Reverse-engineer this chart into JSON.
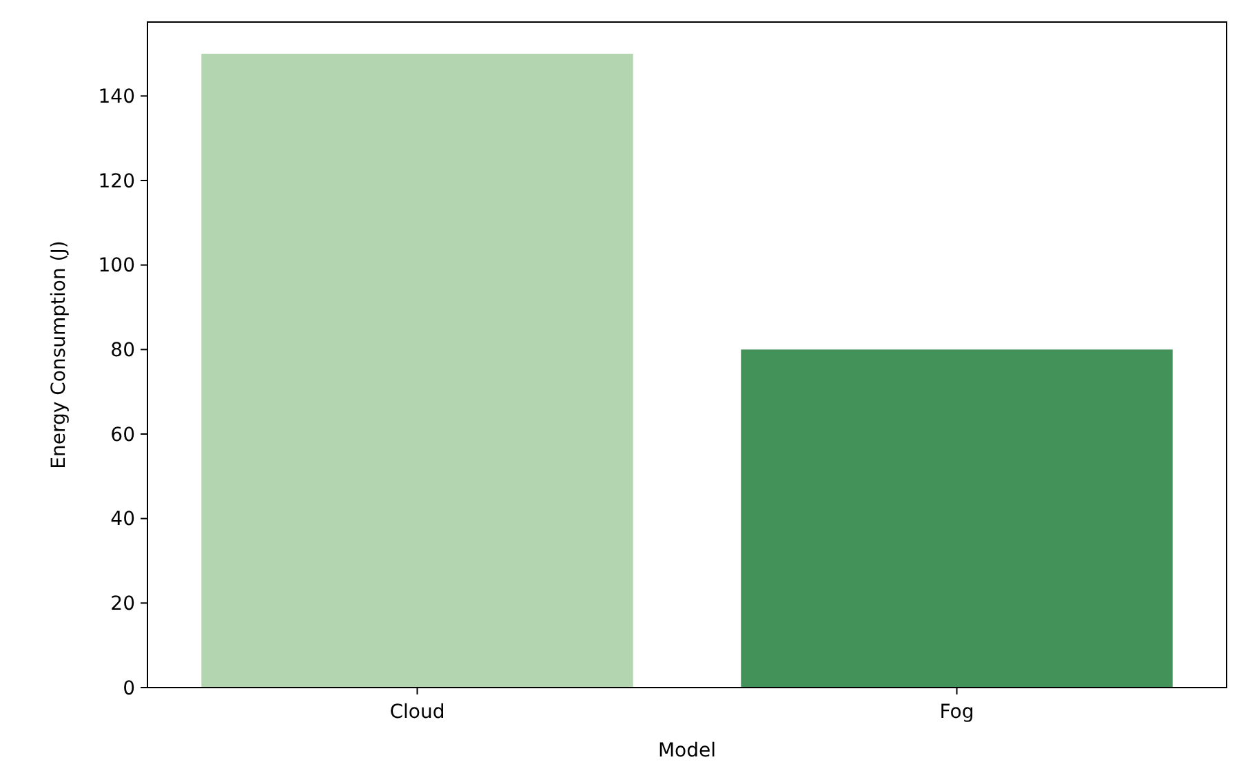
{
  "chart_data": {
    "type": "bar",
    "xlabel": "Model",
    "ylabel": "Energy Consumption (J)",
    "categories": [
      "Cloud",
      "Fog"
    ],
    "values": [
      150,
      80
    ],
    "colors": [
      "#b3d6b0",
      "#43925a"
    ],
    "ylim": [
      0,
      157.5
    ],
    "yticks": [
      0,
      20,
      40,
      60,
      80,
      100,
      120,
      140
    ],
    "grid": false
  }
}
